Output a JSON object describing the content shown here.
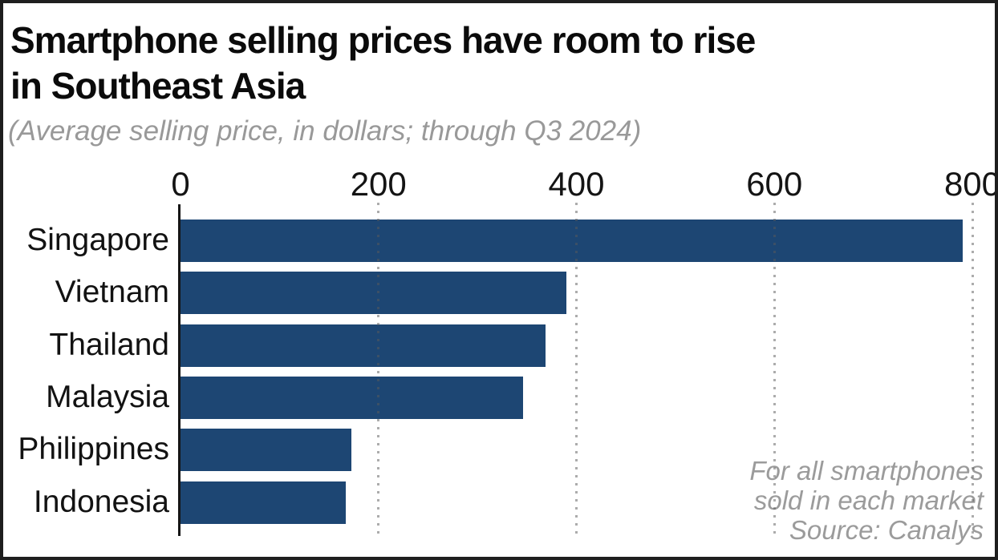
{
  "title": {
    "line1": "Smartphone selling prices have room to rise",
    "line2": "in Southeast Asia"
  },
  "subtitle": "(Average selling price, in dollars; through Q3 2024)",
  "note": {
    "line1": "For all smartphones",
    "line2": "sold in each market",
    "line3": "Source: Canalys"
  },
  "colors": {
    "bar": "#1d4673",
    "axis": "#151515",
    "gridline_dot": "#5a5a5a",
    "title_text": "#0b0b0b",
    "muted_text": "#999999",
    "background": "#ffffff",
    "frame_border": "#1e1e1e"
  },
  "chart_data": {
    "type": "bar",
    "orientation": "horizontal",
    "title": "Smartphone selling prices have room to rise in Southeast Asia",
    "subtitle": "(Average selling price, in dollars; through Q3 2024)",
    "xlabel": "",
    "ylabel": "",
    "categories": [
      "Singapore",
      "Vietnam",
      "Thailand",
      "Malaysia",
      "Philippines",
      "Indonesia"
    ],
    "values": [
      790,
      390,
      369,
      346,
      173,
      167
    ],
    "xlim": [
      0,
      800
    ],
    "x_ticks": [
      0,
      200,
      400,
      600,
      800
    ],
    "grid": "dotted-vertical",
    "legend": "none",
    "source": "Source: Canalys"
  }
}
